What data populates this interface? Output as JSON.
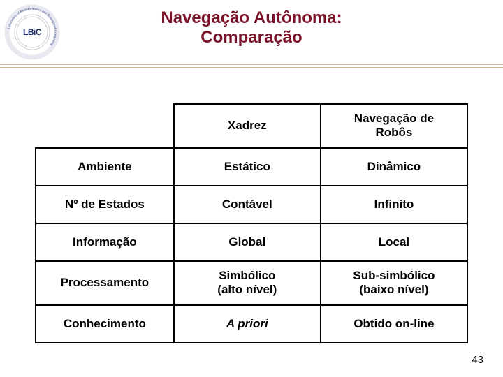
{
  "header": {
    "logo_label": "LBiC",
    "logo_ring_text": "Laboratory of Bioinformatics and Bioinspired Computing",
    "title_line1": "Navegação Autônoma:",
    "title_line2": "Comparação",
    "title_color": "#7a132a",
    "rule_top_color": "#c9b890",
    "rule_bottom_color": "#c9b890"
  },
  "table": {
    "border_color": "#000000",
    "header_font_size": 17,
    "cell_font_size": 17,
    "columns": [
      "",
      "Xadrez",
      "Navegação de Robôs"
    ],
    "rows": [
      {
        "label": "Ambiente",
        "col1": "Estático",
        "col2": "Dinâmico"
      },
      {
        "label": "Nº de Estados",
        "col1": "Contável",
        "col2": "Infinito"
      },
      {
        "label": "Informação",
        "col1": "Global",
        "col2": "Local"
      },
      {
        "label": "Processamento",
        "col1_line1": "Simbólico",
        "col1_line2": "(alto nível)",
        "col2_line1": "Sub-simbólico",
        "col2_line2": "(baixo nível)"
      },
      {
        "label": "Conhecimento",
        "col1": "A priori",
        "col1_italic": true,
        "col2": "Obtido on-line"
      }
    ]
  },
  "footer": {
    "page_number": "43"
  },
  "colors": {
    "background": "#ffffff",
    "text": "#000000",
    "logo_navy": "#1a2a6c",
    "logo_gray": "#888888"
  }
}
